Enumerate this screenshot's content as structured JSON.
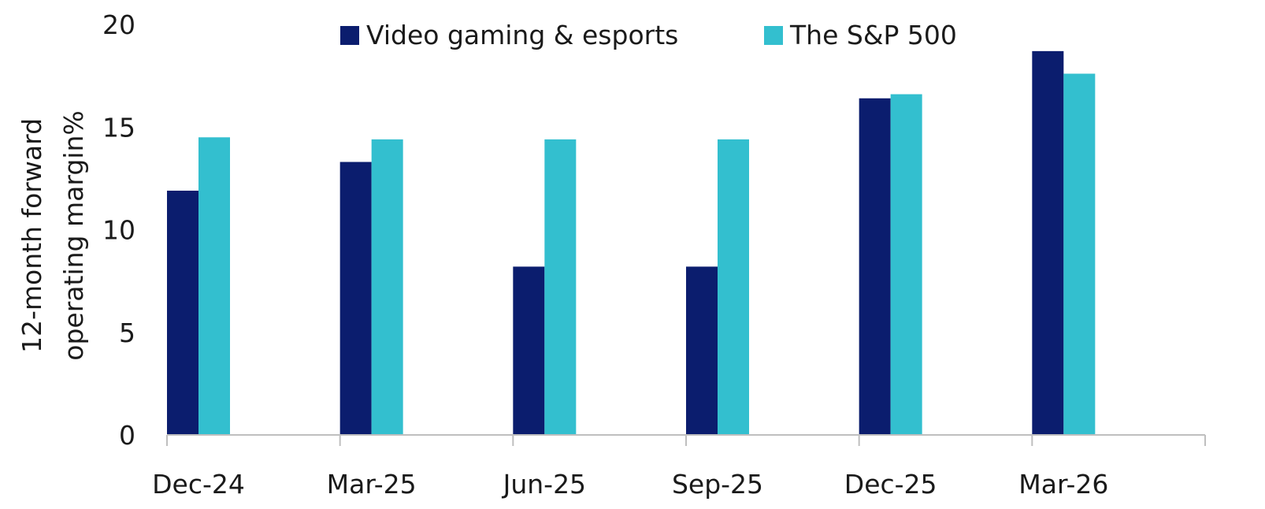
{
  "chart_data": {
    "type": "bar",
    "title": "",
    "xlabel": "",
    "ylabel_lines": [
      "12-month forward",
      "operating margin%"
    ],
    "ylim": [
      0,
      20
    ],
    "yticks": [
      0,
      5,
      10,
      15,
      20
    ],
    "categories": [
      "Dec-24",
      "Mar-25",
      "Jun-25",
      "Sep-25",
      "Dec-25",
      "Mar-26"
    ],
    "series": [
      {
        "name": "Video gaming & esports",
        "color": "#0b1d6e",
        "values": [
          11.9,
          13.3,
          8.2,
          8.2,
          16.4,
          18.7
        ]
      },
      {
        "name": "The S&P 500",
        "color": "#33bfcf",
        "values": [
          14.5,
          14.4,
          14.4,
          14.4,
          16.6,
          17.6
        ]
      }
    ],
    "legend_position": "top-center",
    "grid": false
  }
}
